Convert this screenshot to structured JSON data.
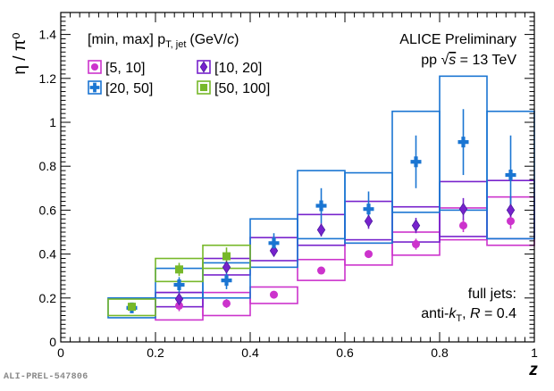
{
  "chart_data": {
    "type": "scatter",
    "title": "",
    "xlabel": "z",
    "ylabel": "η / π⁰",
    "xlim": [
      0,
      1
    ],
    "ylim": [
      0,
      1.5
    ],
    "x_ticks": [
      "0",
      "0.2",
      "0.4",
      "0.6",
      "0.8",
      "1"
    ],
    "y_ticks": [
      "0",
      "0.2",
      "0.4",
      "0.6",
      "0.8",
      "1",
      "1.2",
      "1.4"
    ],
    "legend_header": "[min, max] p",
    "legend_header_sub": "T, jet",
    "legend_header_unit": "(GeV/",
    "legend_header_unit_c": "c",
    "legend_header_unit_end": ")",
    "legend_position": "top-left",
    "series": [
      {
        "name": "[5, 10]",
        "color": "#cc33cc",
        "marker": "circle",
        "points": [
          {
            "x": 0.25,
            "y": 0.165,
            "err": 0.025,
            "sys_lo": 0.1,
            "sys_hi": 0.225,
            "xlo": 0.2,
            "xhi": 0.3
          },
          {
            "x": 0.35,
            "y": 0.175,
            "err": 0.02,
            "sys_lo": 0.12,
            "sys_hi": 0.225,
            "xlo": 0.3,
            "xhi": 0.4
          },
          {
            "x": 0.45,
            "y": 0.215,
            "err": 0.015,
            "sys_lo": 0.175,
            "sys_hi": 0.25,
            "xlo": 0.4,
            "xhi": 0.5
          },
          {
            "x": 0.55,
            "y": 0.325,
            "err": 0.015,
            "sys_lo": 0.28,
            "sys_hi": 0.375,
            "xlo": 0.5,
            "xhi": 0.6
          },
          {
            "x": 0.65,
            "y": 0.4,
            "err": 0.015,
            "sys_lo": 0.35,
            "sys_hi": 0.45,
            "xlo": 0.6,
            "xhi": 0.7
          },
          {
            "x": 0.75,
            "y": 0.445,
            "err": 0.025,
            "sys_lo": 0.395,
            "sys_hi": 0.5,
            "xlo": 0.7,
            "xhi": 0.8
          },
          {
            "x": 0.85,
            "y": 0.53,
            "err": 0.03,
            "sys_lo": 0.465,
            "sys_hi": 0.61,
            "xlo": 0.8,
            "xhi": 0.9
          },
          {
            "x": 0.95,
            "y": 0.55,
            "err": 0.035,
            "sys_lo": 0.44,
            "sys_hi": 0.66,
            "xlo": 0.9,
            "xhi": 1.0
          }
        ]
      },
      {
        "name": "[10, 20]",
        "color": "#7722cc",
        "marker": "diamond",
        "points": [
          {
            "x": 0.25,
            "y": 0.195,
            "err": 0.02,
            "sys_lo": 0.16,
            "sys_hi": 0.225,
            "xlo": 0.2,
            "xhi": 0.3
          },
          {
            "x": 0.35,
            "y": 0.34,
            "err": 0.02,
            "sys_lo": 0.305,
            "sys_hi": 0.38,
            "xlo": 0.3,
            "xhi": 0.4
          },
          {
            "x": 0.45,
            "y": 0.415,
            "err": 0.025,
            "sys_lo": 0.37,
            "sys_hi": 0.475,
            "xlo": 0.4,
            "xhi": 0.5
          },
          {
            "x": 0.55,
            "y": 0.51,
            "err": 0.03,
            "sys_lo": 0.44,
            "sys_hi": 0.58,
            "xlo": 0.5,
            "xhi": 0.6
          },
          {
            "x": 0.65,
            "y": 0.55,
            "err": 0.035,
            "sys_lo": 0.465,
            "sys_hi": 0.64,
            "xlo": 0.6,
            "xhi": 0.7
          },
          {
            "x": 0.75,
            "y": 0.53,
            "err": 0.035,
            "sys_lo": 0.455,
            "sys_hi": 0.615,
            "xlo": 0.7,
            "xhi": 0.8
          },
          {
            "x": 0.85,
            "y": 0.605,
            "err": 0.05,
            "sys_lo": 0.48,
            "sys_hi": 0.73,
            "xlo": 0.8,
            "xhi": 0.9
          },
          {
            "x": 0.95,
            "y": 0.6,
            "err": 0.06,
            "sys_lo": 0.47,
            "sys_hi": 0.735,
            "xlo": 0.9,
            "xhi": 1.0
          }
        ]
      },
      {
        "name": "[20, 50]",
        "color": "#1a75d2",
        "marker": "cross",
        "points": [
          {
            "x": 0.15,
            "y": 0.155,
            "err": 0.02,
            "sys_lo": 0.11,
            "sys_hi": 0.2,
            "xlo": 0.1,
            "xhi": 0.2
          },
          {
            "x": 0.25,
            "y": 0.26,
            "err": 0.035,
            "sys_lo": 0.2,
            "sys_hi": 0.335,
            "xlo": 0.2,
            "xhi": 0.3
          },
          {
            "x": 0.35,
            "y": 0.28,
            "err": 0.04,
            "sys_lo": 0.2,
            "sys_hi": 0.36,
            "xlo": 0.3,
            "xhi": 0.4
          },
          {
            "x": 0.45,
            "y": 0.45,
            "err": 0.045,
            "sys_lo": 0.34,
            "sys_hi": 0.56,
            "xlo": 0.4,
            "xhi": 0.5
          },
          {
            "x": 0.55,
            "y": 0.62,
            "err": 0.08,
            "sys_lo": 0.47,
            "sys_hi": 0.78,
            "xlo": 0.5,
            "xhi": 0.6
          },
          {
            "x": 0.65,
            "y": 0.605,
            "err": 0.08,
            "sys_lo": 0.45,
            "sys_hi": 0.77,
            "xlo": 0.6,
            "xhi": 0.7
          },
          {
            "x": 0.75,
            "y": 0.82,
            "err": 0.12,
            "sys_lo": 0.59,
            "sys_hi": 1.05,
            "xlo": 0.7,
            "xhi": 0.8
          },
          {
            "x": 0.85,
            "y": 0.91,
            "err": 0.15,
            "sys_lo": 0.6,
            "sys_hi": 1.21,
            "xlo": 0.8,
            "xhi": 0.9
          },
          {
            "x": 0.95,
            "y": 0.76,
            "err": 0.18,
            "sys_lo": 0.47,
            "sys_hi": 1.05,
            "xlo": 0.9,
            "xhi": 1.0
          }
        ]
      },
      {
        "name": "[50, 100]",
        "color": "#77b82a",
        "marker": "square",
        "points": [
          {
            "x": 0.15,
            "y": 0.16,
            "err": 0.015,
            "sys_lo": 0.12,
            "sys_hi": 0.195,
            "xlo": 0.1,
            "xhi": 0.2
          },
          {
            "x": 0.25,
            "y": 0.33,
            "err": 0.03,
            "sys_lo": 0.275,
            "sys_hi": 0.38,
            "xlo": 0.2,
            "xhi": 0.3
          },
          {
            "x": 0.35,
            "y": 0.39,
            "err": 0.04,
            "sys_lo": 0.335,
            "sys_hi": 0.44,
            "xlo": 0.3,
            "xhi": 0.4
          }
        ]
      }
    ],
    "annotations": {
      "experiment": "ALICE Preliminary",
      "system_prefix": "pp  √",
      "system_s": "s",
      "system_suffix": " = 13 TeV",
      "jets_line1": "full jets:",
      "jets_line2_prefix": "anti-",
      "jets_k": "k",
      "jets_T": "T",
      "jets_sep": ",  ",
      "jets_R": "R",
      "jets_value": " = 0.4"
    }
  },
  "watermark": "ALI-PREL-547806"
}
